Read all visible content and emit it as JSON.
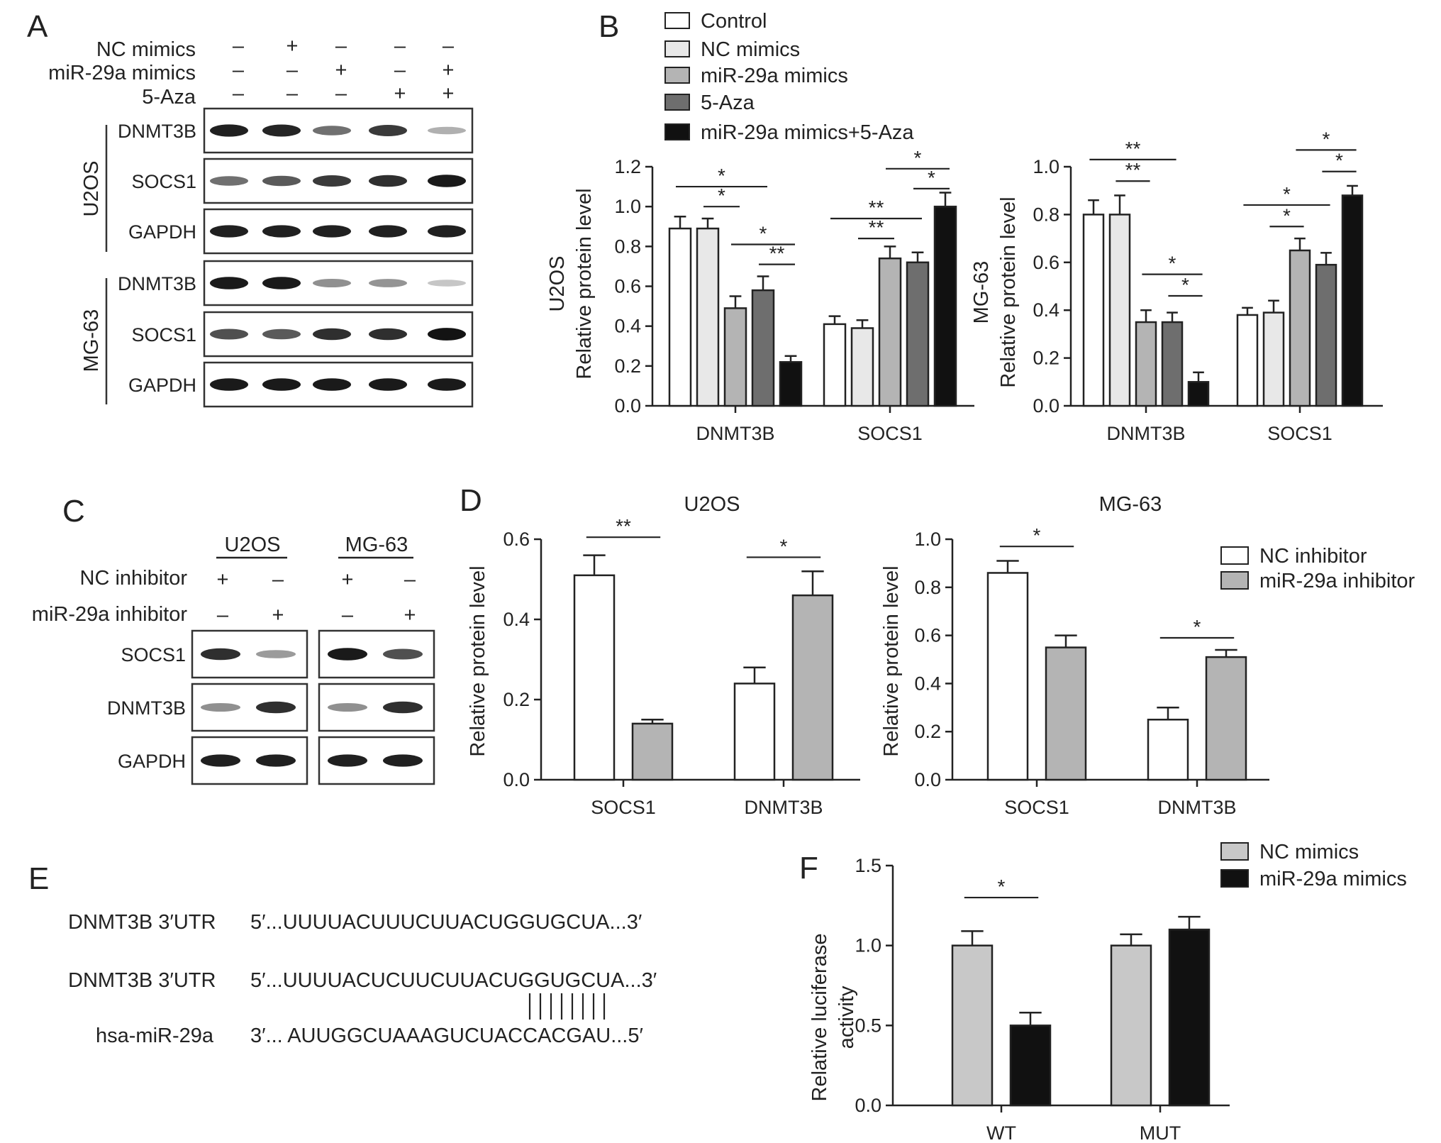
{
  "panels": {
    "a": "A",
    "b": "B",
    "c": "C",
    "d": "D",
    "e": "E",
    "f": "F"
  },
  "panel_a": {
    "conditions": [
      {
        "label": "NC mimics",
        "signs": [
          "–",
          "+",
          "–",
          "–",
          "–"
        ]
      },
      {
        "label": "miR-29a mimics",
        "signs": [
          "–",
          "–",
          "+",
          "–",
          "+"
        ]
      },
      {
        "label": "5-Aza",
        "signs": [
          "–",
          "–",
          "–",
          "+",
          "+"
        ]
      }
    ],
    "cell_lines": [
      "U2OS",
      "MG-63"
    ],
    "blots": [
      {
        "cell": "U2OS",
        "label": "DNMT3B",
        "intensity": [
          0.92,
          0.9,
          0.55,
          0.8,
          0.25
        ]
      },
      {
        "cell": "U2OS",
        "label": "SOCS1",
        "intensity": [
          0.55,
          0.65,
          0.8,
          0.85,
          0.95
        ]
      },
      {
        "cell": "U2OS",
        "label": "GAPDH",
        "intensity": [
          0.92,
          0.92,
          0.92,
          0.92,
          0.92
        ]
      },
      {
        "cell": "MG-63",
        "label": "DNMT3B",
        "intensity": [
          0.95,
          0.95,
          0.4,
          0.38,
          0.15
        ]
      },
      {
        "cell": "MG-63",
        "label": "SOCS1",
        "intensity": [
          0.7,
          0.65,
          0.85,
          0.85,
          0.98
        ]
      },
      {
        "cell": "MG-63",
        "label": "GAPDH",
        "intensity": [
          0.95,
          0.95,
          0.95,
          0.95,
          0.95
        ]
      }
    ]
  },
  "panel_c": {
    "cell_lines": [
      "U2OS",
      "MG-63"
    ],
    "conditions": [
      {
        "label": "NC inhibitor",
        "signs": [
          "+",
          "–",
          "+",
          "–"
        ]
      },
      {
        "label": "miR-29a inhibitor",
        "signs": [
          "–",
          "+",
          "–",
          "+"
        ]
      }
    ],
    "blots": [
      {
        "label": "SOCS1",
        "intensity": [
          0.85,
          0.35,
          0.95,
          0.7
        ]
      },
      {
        "label": "DNMT3B",
        "intensity": [
          0.4,
          0.85,
          0.4,
          0.85
        ]
      },
      {
        "label": "GAPDH",
        "intensity": [
          0.92,
          0.92,
          0.92,
          0.92
        ]
      }
    ]
  },
  "panel_e": {
    "rows": [
      {
        "name": "DNMT3B 3′UTR",
        "seq": "5′...UUUUACUUUCUUACUGGUGCUA...3′"
      },
      {
        "name": "DNMT3B 3′UTR",
        "seq": "5′...UUUUACUCUUCUUACUGGUGCUA...3′"
      },
      {
        "name": "hsa-miR-29a",
        "seq": "3′...  AUUGGCUAAAGUCUACCACGAU...5′"
      }
    ],
    "pairing_lines": 8
  },
  "colors": {
    "white": "#ffffff",
    "light": "#e8e8e8",
    "mid": "#b4b4b4",
    "dark": "#6e6e6e",
    "black": "#111111",
    "ncInhibitor": "#ffffff",
    "miRInhibitor": "#b4b4b4",
    "ncMimics": "#c8c8c8",
    "miRMimics": "#111111"
  },
  "chart_data": [
    {
      "id": "B-U2OS",
      "type": "bar",
      "categories": [
        "DNMT3B",
        "SOCS1"
      ],
      "series": [
        {
          "name": "Control",
          "values": [
            0.89,
            0.41
          ],
          "errors": [
            0.06,
            0.04
          ]
        },
        {
          "name": "NC mimics",
          "values": [
            0.89,
            0.39
          ],
          "errors": [
            0.05,
            0.04
          ]
        },
        {
          "name": "miR-29a mimics",
          "values": [
            0.49,
            0.74
          ],
          "errors": [
            0.06,
            0.06
          ]
        },
        {
          "name": "5-Aza",
          "values": [
            0.58,
            0.72
          ],
          "errors": [
            0.07,
            0.05
          ]
        },
        {
          "name": "miR-29a mimics+5-Aza",
          "values": [
            0.22,
            1.0
          ],
          "errors": [
            0.03,
            0.07
          ]
        }
      ],
      "ylabel": "Relative protein level",
      "ylabel2": "U2OS",
      "ylim": [
        0,
        1.2
      ],
      "yticks": [
        "0.0",
        "0.2",
        "0.4",
        "0.6",
        "0.8",
        "1.0",
        "1.2"
      ],
      "significance": [
        {
          "cat": 0,
          "from": 0,
          "to": 3,
          "y": 1.1,
          "label": "*"
        },
        {
          "cat": 0,
          "from": 1,
          "to": 2,
          "y": 1.0,
          "label": "*"
        },
        {
          "cat": 0,
          "from": 2,
          "to": 4,
          "y": 0.81,
          "label": "*"
        },
        {
          "cat": 0,
          "from": 3,
          "to": 4,
          "y": 0.71,
          "label": "**"
        },
        {
          "cat": 1,
          "from": 0,
          "to": 3,
          "y": 0.94,
          "label": "**"
        },
        {
          "cat": 1,
          "from": 1,
          "to": 2,
          "y": 0.84,
          "label": "**"
        },
        {
          "cat": 1,
          "from": 2,
          "to": 4,
          "y": 1.19,
          "label": "*"
        },
        {
          "cat": 1,
          "from": 3,
          "to": 4,
          "y": 1.09,
          "label": "*"
        }
      ]
    },
    {
      "id": "B-MG63",
      "type": "bar",
      "categories": [
        "DNMT3B",
        "SOCS1"
      ],
      "series": [
        {
          "name": "Control",
          "values": [
            0.8,
            0.38
          ],
          "errors": [
            0.06,
            0.03
          ]
        },
        {
          "name": "NC mimics",
          "values": [
            0.8,
            0.39
          ],
          "errors": [
            0.08,
            0.05
          ]
        },
        {
          "name": "miR-29a mimics",
          "values": [
            0.35,
            0.65
          ],
          "errors": [
            0.05,
            0.05
          ]
        },
        {
          "name": "5-Aza",
          "values": [
            0.35,
            0.59
          ],
          "errors": [
            0.04,
            0.05
          ]
        },
        {
          "name": "miR-29a mimics+5-Aza",
          "values": [
            0.1,
            0.88
          ],
          "errors": [
            0.04,
            0.04
          ]
        }
      ],
      "ylabel": "Relative protein level",
      "ylabel2": "MG-63",
      "ylim": [
        0,
        1.0
      ],
      "yticks": [
        "0.0",
        "0.2",
        "0.4",
        "0.6",
        "0.8",
        "1.0"
      ],
      "significance": [
        {
          "cat": 0,
          "from": 0,
          "to": 3,
          "y": 1.03,
          "label": "**"
        },
        {
          "cat": 0,
          "from": 1,
          "to": 2,
          "y": 0.94,
          "label": "**"
        },
        {
          "cat": 0,
          "from": 2,
          "to": 4,
          "y": 0.55,
          "label": "*"
        },
        {
          "cat": 0,
          "from": 3,
          "to": 4,
          "y": 0.46,
          "label": "*"
        },
        {
          "cat": 1,
          "from": 0,
          "to": 3,
          "y": 0.84,
          "label": "*"
        },
        {
          "cat": 1,
          "from": 1,
          "to": 2,
          "y": 0.75,
          "label": "*"
        },
        {
          "cat": 1,
          "from": 2,
          "to": 4,
          "y": 1.07,
          "label": "*"
        },
        {
          "cat": 1,
          "from": 3,
          "to": 4,
          "y": 0.98,
          "label": "*"
        }
      ]
    },
    {
      "id": "D-U2OS",
      "type": "bar",
      "title": "U2OS",
      "categories": [
        "SOCS1",
        "DNMT3B"
      ],
      "series": [
        {
          "name": "NC inhibitor",
          "values": [
            0.51,
            0.24
          ],
          "errors": [
            0.05,
            0.04
          ]
        },
        {
          "name": "miR-29a inhibitor",
          "values": [
            0.14,
            0.46
          ],
          "errors": [
            0.01,
            0.06
          ]
        }
      ],
      "ylabel": "Relative protein level",
      "ylim": [
        0,
        0.6
      ],
      "yticks": [
        "0.0",
        "0.2",
        "0.4",
        "0.6"
      ],
      "significance": [
        {
          "cat": 0,
          "from": 0,
          "to": 1,
          "y": 0.605,
          "label": "**"
        },
        {
          "cat": 1,
          "from": 0,
          "to": 1,
          "y": 0.555,
          "label": "*"
        }
      ]
    },
    {
      "id": "D-MG63",
      "type": "bar",
      "title": "MG-63",
      "categories": [
        "SOCS1",
        "DNMT3B"
      ],
      "series": [
        {
          "name": "NC inhibitor",
          "values": [
            0.86,
            0.25
          ],
          "errors": [
            0.05,
            0.05
          ]
        },
        {
          "name": "miR-29a inhibitor",
          "values": [
            0.55,
            0.51
          ],
          "errors": [
            0.05,
            0.03
          ]
        }
      ],
      "ylabel": "Relative protein level",
      "ylim": [
        0,
        1.0
      ],
      "yticks": [
        "0.0",
        "0.2",
        "0.4",
        "0.6",
        "0.8",
        "1.0"
      ],
      "significance": [
        {
          "cat": 0,
          "from": 0,
          "to": 1,
          "y": 0.97,
          "label": "*"
        },
        {
          "cat": 1,
          "from": 0,
          "to": 1,
          "y": 0.59,
          "label": "*"
        }
      ]
    },
    {
      "id": "F",
      "type": "bar",
      "categories": [
        "WT",
        "MUT"
      ],
      "series": [
        {
          "name": "NC mimics",
          "values": [
            1.0,
            1.0
          ],
          "errors": [
            0.09,
            0.07
          ]
        },
        {
          "name": "miR-29a mimics",
          "values": [
            0.5,
            1.1
          ],
          "errors": [
            0.08,
            0.08
          ]
        }
      ],
      "ylabel": "Relative luciferase",
      "ylabel2": "activity",
      "ylim": [
        0,
        1.5
      ],
      "yticks": [
        "0.0",
        "0.5",
        "1.0",
        "1.5"
      ],
      "significance": [
        {
          "cat": 0,
          "from": 0,
          "to": 1,
          "y": 1.3,
          "label": "*"
        }
      ]
    }
  ]
}
